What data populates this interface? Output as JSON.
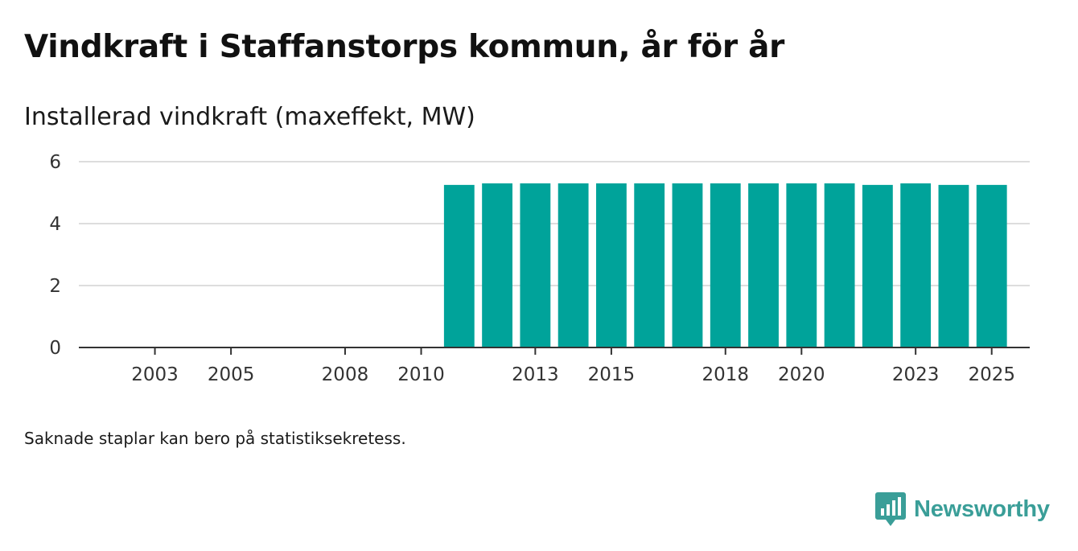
{
  "title": "Vindkraft i Staffanstorps kommun, år för år",
  "subtitle": "Installerad vindkraft (maxeffekt, MW)",
  "footnote": "Saknade staplar kan bero på statistiksekretess.",
  "brand": {
    "name": "Newsworthy",
    "icon": "newsworthy-logo-icon",
    "color": "#3a9e98"
  },
  "chart_data": {
    "type": "bar",
    "title": "Vindkraft i Staffanstorps kommun, år för år",
    "ylabel": "Installerad vindkraft (maxeffekt, MW)",
    "xlabel": "",
    "ylim": [
      0,
      6
    ],
    "yticks": [
      0,
      2,
      4,
      6
    ],
    "x_tick_labels": [
      "2003",
      "2005",
      "2008",
      "2010",
      "2013",
      "2015",
      "2018",
      "2020",
      "2023",
      "2025"
    ],
    "x_range": [
      2001,
      2026
    ],
    "grid": true,
    "bar_color": "#00a39a",
    "categories": [
      2011,
      2012,
      2013,
      2014,
      2015,
      2016,
      2017,
      2018,
      2019,
      2020,
      2021,
      2022,
      2023,
      2024,
      2025
    ],
    "values": [
      5.25,
      5.3,
      5.3,
      5.3,
      5.3,
      5.3,
      5.3,
      5.3,
      5.3,
      5.3,
      5.3,
      5.25,
      5.3,
      5.25,
      5.25
    ]
  }
}
